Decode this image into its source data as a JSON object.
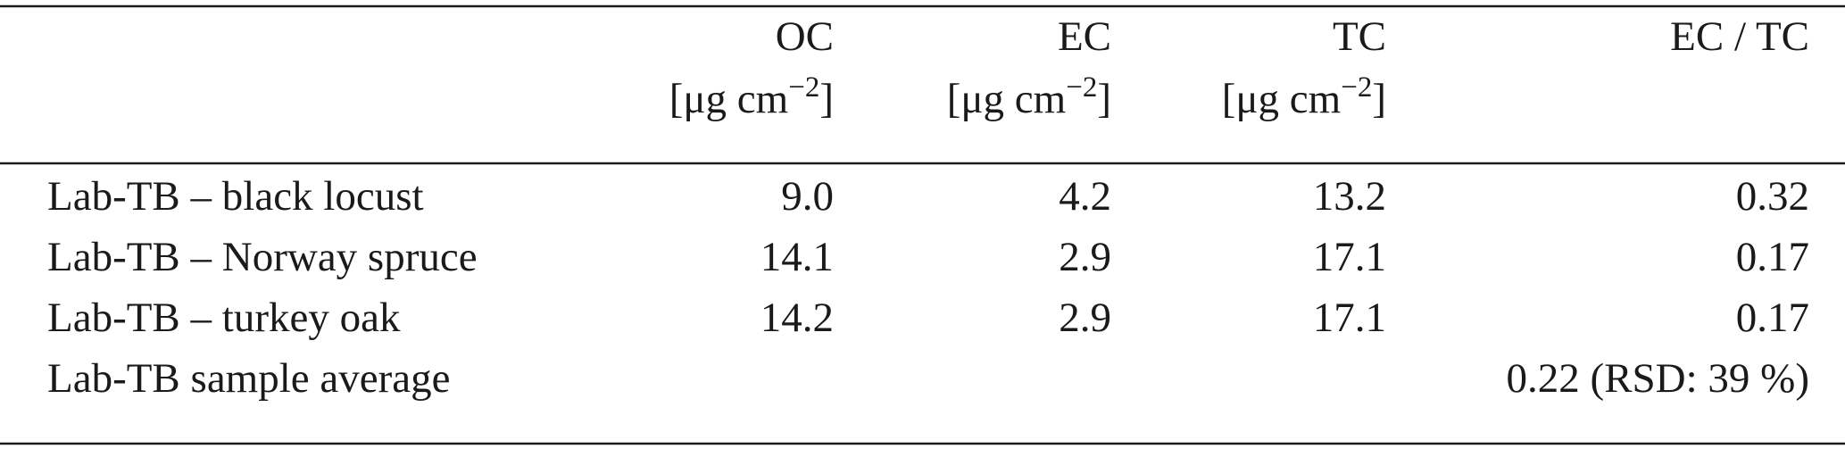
{
  "table": {
    "columns": [
      {
        "name": "OC",
        "unit": "[μg cm",
        "unit_exponent": "−2",
        "unit_end": "]"
      },
      {
        "name": "EC",
        "unit": "[μg cm",
        "unit_exponent": "−2",
        "unit_end": "]"
      },
      {
        "name": "TC",
        "unit": "[μg cm",
        "unit_exponent": "−2",
        "unit_end": "]"
      },
      {
        "name": "EC / TC"
      }
    ],
    "rows": [
      {
        "label": "Lab-TB – black locust",
        "cells": [
          "9.0",
          "4.2",
          "13.2",
          "0.32"
        ]
      },
      {
        "label": "Lab-TB – Norway spruce",
        "cells": [
          "14.1",
          "2.9",
          "17.1",
          "0.17"
        ]
      },
      {
        "label": "Lab-TB – turkey oak",
        "cells": [
          "14.2",
          "2.9",
          "17.1",
          "0.17"
        ]
      },
      {
        "label": "Lab-TB sample average",
        "summary": "0.22 (RSD: 39 %)"
      }
    ]
  }
}
